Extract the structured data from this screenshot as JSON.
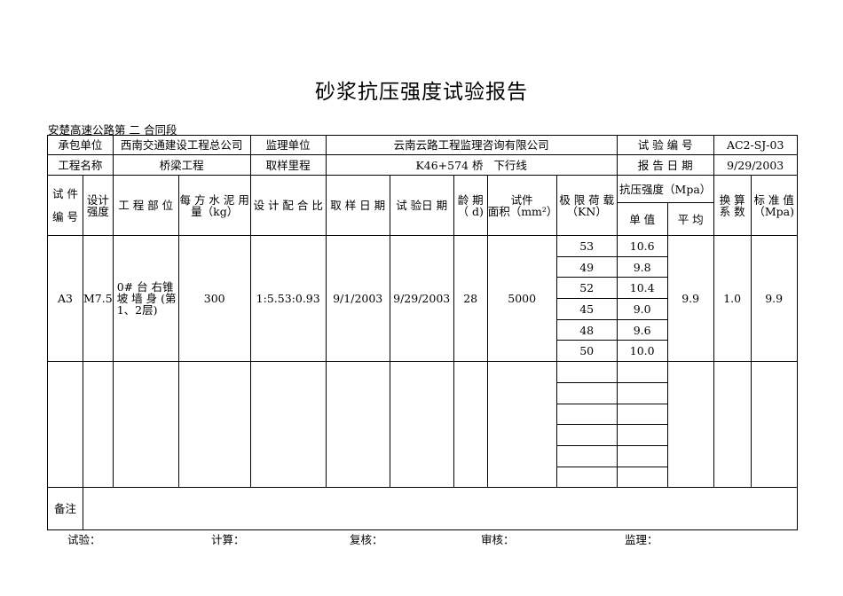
{
  "title": "砂浆抗压强度试验报告",
  "section": {
    "prefix": "安楚高速公路第",
    "number": "二",
    "suffix": "合同段"
  },
  "info": {
    "contractor_label": "承包单位",
    "contractor": "西南交通建设工程总公司",
    "supervisor_label": "监理单位",
    "supervisor": "云南云路工程监理咨询有限公司",
    "test_no_label": "试 验 编 号",
    "test_no": "AC2-SJ-03",
    "project_label": "工程名称",
    "project": "桥梁工程",
    "mileage_label": "取样里程",
    "mileage": "K46+574 桥   下行线",
    "report_date_label": "报 告 日 期",
    "report_date": "9/29/2003"
  },
  "headers": {
    "specimen_no": "试 件\n编 号",
    "design_strength": "设计\n强度",
    "part": "工 程 部 位",
    "cement": "每 方 水 泥 用 量（kg）",
    "mix_ratio": "设 计 配 合 比",
    "sample_date": "取 样 日 期",
    "test_date": "试 验日 期",
    "age": "龄 期（ d)",
    "area": "试件\n面积（mm²）",
    "load": "极 限 荷 载（KN）",
    "strength": "抗压强度（Mpa）",
    "single": "单 值",
    "avg": "平 均",
    "factor": "换 算 系 数",
    "standard": "标 准 值（Mpa)"
  },
  "rows": [
    {
      "specimen_no": "A3",
      "design_strength": "M7.5",
      "part": "0# 台 右锥 坡 墙 身 (第1、2层)",
      "cement": "300",
      "mix_ratio": "1:5.53:0.93",
      "sample_date": "9/1/2003",
      "test_date": "9/29/2003",
      "age": "28",
      "area": "5000",
      "loads": [
        "53",
        "49",
        "52",
        "45",
        "48",
        "50"
      ],
      "singles": [
        "10.6",
        "9.8",
        "10.4",
        "9.0",
        "9.6",
        "10.0"
      ],
      "avg": "9.9",
      "factor": "1.0",
      "standard": "9.9"
    }
  ],
  "remarks_label": "备注",
  "footer": {
    "test": "试验：",
    "calc": "计算：",
    "review": "复核：",
    "audit": "审核：",
    "supervise": "监理："
  }
}
